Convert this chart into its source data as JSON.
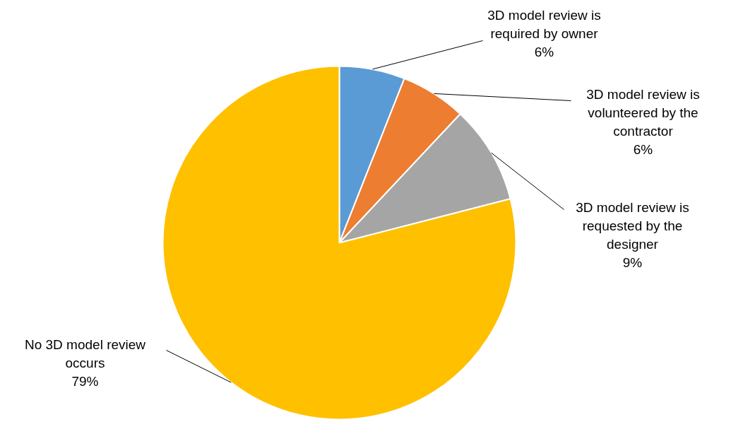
{
  "chart_data": {
    "type": "pie",
    "categories": [
      "3D model review is required by owner",
      "3D model review is volunteered by the contractor",
      "3D model review is requested by the designer",
      "No 3D model review occurs"
    ],
    "values": [
      6,
      6,
      9,
      79
    ],
    "colors": [
      "#5b9bd5",
      "#ed7d31",
      "#a5a5a5",
      "#ffc000"
    ],
    "value_labels": [
      "6%",
      "6%",
      "9%",
      "79%"
    ],
    "legend": false
  }
}
